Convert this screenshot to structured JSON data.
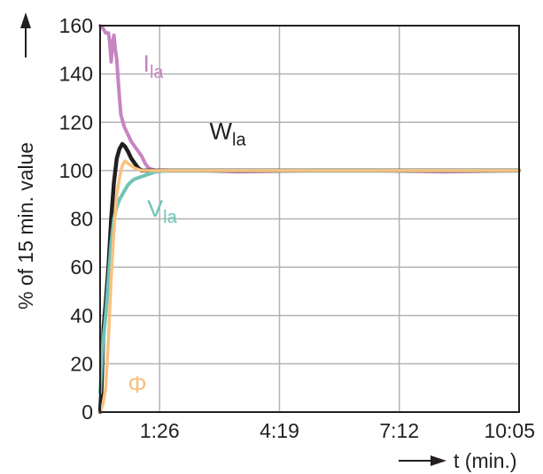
{
  "chart_data": {
    "type": "line",
    "ylabel": "% of 15 min. value",
    "ylabel_arrow": "arrow-up",
    "xlabel": "t (min.)",
    "xlabel_arrow": "arrow-right",
    "ylim": [
      0,
      160
    ],
    "xlim": [
      0,
      605
    ],
    "y_ticks": [
      0,
      20,
      40,
      60,
      80,
      100,
      120,
      140,
      160
    ],
    "x_ticks": [
      {
        "label": "1:26",
        "value": 86
      },
      {
        "label": "4:19",
        "value": 259
      },
      {
        "label": "7:12",
        "value": 432
      },
      {
        "label": "10:05",
        "value": 605
      }
    ],
    "grid": true,
    "series": [
      {
        "name": "I",
        "subscript": "la",
        "color": "#c784c3",
        "label_at": [
          62,
          141
        ],
        "x": [
          0,
          4,
          8,
          12,
          14,
          16,
          18,
          20,
          22,
          24,
          26,
          28,
          30,
          35,
          40,
          45,
          50,
          55,
          60,
          65,
          70,
          80,
          100,
          150,
          200,
          300,
          400,
          500,
          605
        ],
        "y": [
          160,
          159,
          157,
          157,
          153,
          145,
          153,
          156,
          150,
          146,
          138,
          130,
          123,
          118,
          115,
          112,
          110,
          108,
          106,
          103,
          101,
          100,
          100,
          100,
          99.5,
          100,
          100,
          99.5,
          100
        ]
      },
      {
        "name": "W",
        "subscript": "la",
        "color": "#231f20",
        "label_at": [
          158,
          113
        ],
        "x": [
          0,
          2,
          5,
          8,
          12,
          16,
          20,
          24,
          28,
          32,
          36,
          40,
          45,
          50,
          55,
          60,
          65,
          70,
          80,
          100,
          150,
          200,
          300,
          400,
          500,
          605
        ],
        "y": [
          0,
          10,
          35,
          45,
          60,
          80,
          95,
          105,
          109,
          111,
          110,
          108,
          105,
          103,
          101,
          100,
          100,
          100,
          100,
          100,
          100,
          100,
          100,
          100,
          100,
          100
        ]
      },
      {
        "name": "V",
        "subscript": "la",
        "color": "#6fc3b8",
        "label_at": [
          68,
          81
        ],
        "x": [
          0,
          4,
          8,
          12,
          16,
          20,
          24,
          28,
          32,
          36,
          40,
          45,
          50,
          55,
          60,
          65,
          70,
          80,
          100,
          150,
          200,
          300,
          400,
          500,
          605
        ],
        "y": [
          8,
          28,
          40,
          55,
          70,
          80,
          85,
          88,
          90,
          92,
          94,
          95.5,
          96.5,
          97,
          97.5,
          98,
          98.5,
          99.5,
          100,
          100,
          100,
          100,
          100,
          100,
          100
        ]
      },
      {
        "name": "Φ",
        "subscript": "",
        "color": "#f7c17f",
        "label_at": [
          40,
          8
        ],
        "x": [
          0,
          4,
          8,
          12,
          16,
          20,
          24,
          28,
          32,
          36,
          40,
          45,
          50,
          55,
          60,
          70,
          80,
          100,
          150,
          200,
          300,
          400,
          500,
          605
        ],
        "y": [
          0,
          3,
          10,
          30,
          55,
          75,
          90,
          97,
          102,
          104,
          103,
          102,
          101,
          100.5,
          100,
          100,
          100,
          100,
          100,
          100,
          100,
          100,
          100,
          100
        ]
      }
    ]
  }
}
